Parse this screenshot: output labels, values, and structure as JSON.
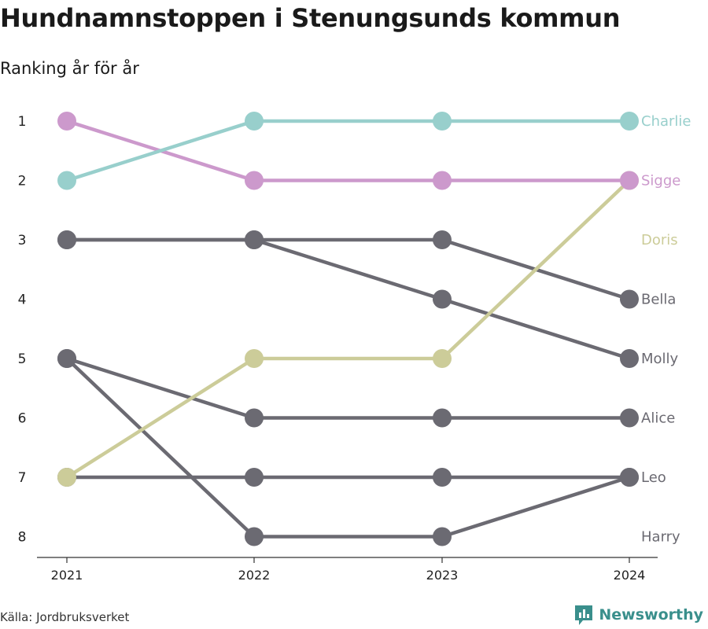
{
  "title": "Hundnamnstoppen i Stenungsunds kommun",
  "subtitle": "Ranking år för år",
  "source": "Källa: Jordbruksverket",
  "brand": "Newsworthy",
  "colors": {
    "highlight_1": "#98cfcc",
    "highlight_2": "#cc99cc",
    "highlight_3": "#cccc99",
    "default": "#6b6a72",
    "axis": "#333333",
    "brand": "#3a8f8c"
  },
  "chart_data": {
    "type": "line",
    "subtype": "bump",
    "x": [
      "2021",
      "2022",
      "2023",
      "2024"
    ],
    "y_ticks": [
      "1",
      "2",
      "3",
      "4",
      "5",
      "6",
      "7",
      "8"
    ],
    "ylim": [
      1,
      8
    ],
    "y_inverted": true,
    "series": [
      {
        "name": "Bella",
        "values": [
          3,
          3,
          3,
          4
        ],
        "color": "#6b6a72"
      },
      {
        "name": "Molly",
        "values": [
          3,
          3,
          4,
          5
        ],
        "color": "#6b6a72"
      },
      {
        "name": "Alice",
        "values": [
          5,
          6,
          6,
          6
        ],
        "color": "#6b6a72"
      },
      {
        "name": "Harry",
        "values": [
          5,
          8,
          8,
          7
        ],
        "color": "#6b6a72"
      },
      {
        "name": "Leo",
        "values": [
          7,
          7,
          7,
          7
        ],
        "color": "#6b6a72"
      },
      {
        "name": "Doris",
        "values": [
          7,
          5,
          5,
          2
        ],
        "color": "#cccc99"
      },
      {
        "name": "Sigge",
        "values": [
          1,
          2,
          2,
          2
        ],
        "color": "#cc99cc"
      },
      {
        "name": "Charlie",
        "values": [
          2,
          1,
          1,
          1
        ],
        "color": "#98cfcc"
      }
    ],
    "end_labels": [
      {
        "name": "Charlie",
        "rank": 1,
        "color": "#98cfcc"
      },
      {
        "name": "Sigge",
        "rank": 2,
        "color": "#cc99cc"
      },
      {
        "name": "Doris",
        "rank": 3,
        "color": "#cccc99"
      },
      {
        "name": "Bella",
        "rank": 4,
        "color": "#6b6a72"
      },
      {
        "name": "Molly",
        "rank": 5,
        "color": "#6b6a72"
      },
      {
        "name": "Alice",
        "rank": 6,
        "color": "#6b6a72"
      },
      {
        "name": "Leo",
        "rank": 7,
        "color": "#6b6a72"
      },
      {
        "name": "Harry",
        "rank": 8,
        "color": "#6b6a72"
      }
    ],
    "grid": false,
    "legend": "none"
  }
}
